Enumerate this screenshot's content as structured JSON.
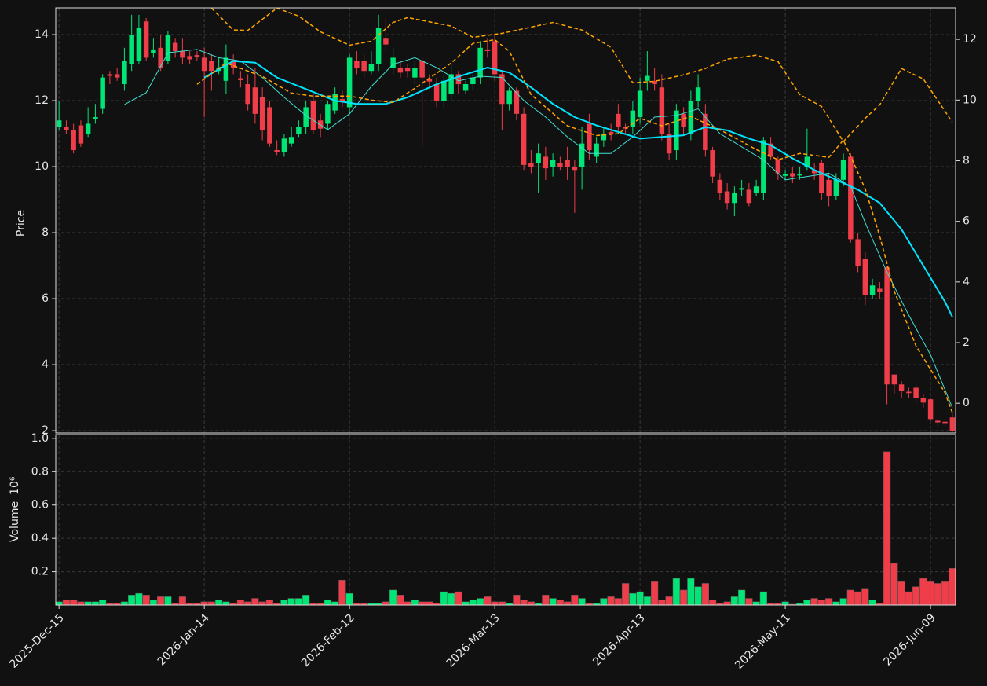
{
  "chart_data": [
    {
      "type": "candlestick",
      "ylabel": "Price",
      "up_color": "#00e676",
      "down_color": "#ef3d4a",
      "xlim": [
        -0.45,
        123.45
      ],
      "ylim": [
        1.93,
        14.81
      ],
      "yticks": [
        2,
        4,
        6,
        8,
        10,
        12,
        14
      ],
      "y2lim": [
        -0.98,
        13.04
      ],
      "y2ticks": [
        0,
        2,
        4,
        6,
        8,
        10,
        12
      ],
      "grid": true,
      "open": [
        11.2,
        11.2,
        11.1,
        11.25,
        11.0,
        11.45,
        11.75,
        12.8,
        12.8,
        12.5,
        13.1,
        13.2,
        14.4,
        13.45,
        13.6,
        13.2,
        13.75,
        13.5,
        13.35,
        13.38,
        13.3,
        13.2,
        12.9,
        12.6,
        13.2,
        12.68,
        12.5,
        12.4,
        12.1,
        11.8,
        10.5,
        10.45,
        10.7,
        11.0,
        11.2,
        12.0,
        11.4,
        11.3,
        11.7,
        12.05,
        11.8,
        13.2,
        13.2,
        12.9,
        13.1,
        13.9,
        13.0,
        13.0,
        13.0,
        12.7,
        13.2,
        12.65,
        12.5,
        12.0,
        12.2,
        12.8,
        12.3,
        12.5,
        12.7,
        13.55,
        13.8,
        12.8,
        11.9,
        12.3,
        11.6,
        10.1,
        10.1,
        10.3,
        10.0,
        10.1,
        10.2,
        10.0,
        10.0,
        11.3,
        10.3,
        10.8,
        11.05,
        11.6,
        11.2,
        11.2,
        11.5,
        12.6,
        12.6,
        12.4,
        11.0,
        10.5,
        11.6,
        11.0,
        12.0,
        11.6,
        10.5,
        9.6,
        9.25,
        8.9,
        9.3,
        9.3,
        9.2,
        9.2,
        10.7,
        10.2,
        9.72,
        9.8,
        9.73,
        10.0,
        9.9,
        10.1,
        9.6,
        9.1,
        9.6,
        10.3,
        7.8,
        7.2,
        6.1,
        6.3,
        6.95,
        3.7,
        3.4,
        3.18,
        3.3,
        3.0,
        2.95,
        2.3,
        2.27,
        2.4
      ],
      "high": [
        12.0,
        11.4,
        11.3,
        11.4,
        11.8,
        11.9,
        12.8,
        12.9,
        13.0,
        13.6,
        14.6,
        14.6,
        14.5,
        13.9,
        14.0,
        14.1,
        13.9,
        13.9,
        13.5,
        13.5,
        13.6,
        13.4,
        13.3,
        13.7,
        13.4,
        12.9,
        12.8,
        13.0,
        12.4,
        12.0,
        10.8,
        11.0,
        11.2,
        11.4,
        12.0,
        12.2,
        11.6,
        12.0,
        12.4,
        12.3,
        13.4,
        13.5,
        13.4,
        13.5,
        14.6,
        14.5,
        13.6,
        13.2,
        13.1,
        13.2,
        13.3,
        12.8,
        12.7,
        12.8,
        13.1,
        12.9,
        12.6,
        12.9,
        13.8,
        13.9,
        14.0,
        12.9,
        12.4,
        12.4,
        11.8,
        10.5,
        10.7,
        10.6,
        10.4,
        10.3,
        10.6,
        10.2,
        11.2,
        11.6,
        10.9,
        11.2,
        11.3,
        11.9,
        11.3,
        12.0,
        12.7,
        13.5,
        13.0,
        12.8,
        11.3,
        11.9,
        11.8,
        12.3,
        12.8,
        11.9,
        10.6,
        9.8,
        9.5,
        9.4,
        9.6,
        9.5,
        9.6,
        10.9,
        10.9,
        10.3,
        9.9,
        10.0,
        10.0,
        11.15,
        10.1,
        10.2,
        9.8,
        9.8,
        10.4,
        10.4,
        8.0,
        7.4,
        6.6,
        6.5,
        7.0,
        3.7,
        3.5,
        3.3,
        3.4,
        3.1,
        3.0,
        2.35,
        2.35,
        2.5
      ],
      "low": [
        11.1,
        11.0,
        10.4,
        10.6,
        10.9,
        11.3,
        11.6,
        12.5,
        12.6,
        12.3,
        12.9,
        13.1,
        13.2,
        13.3,
        12.9,
        13.1,
        13.3,
        13.1,
        13.1,
        13.2,
        11.5,
        12.3,
        12.8,
        12.2,
        12.8,
        12.4,
        11.7,
        11.3,
        10.8,
        10.6,
        10.35,
        10.3,
        10.6,
        10.9,
        11.0,
        11.0,
        10.9,
        11.1,
        11.6,
        11.8,
        11.6,
        12.8,
        12.7,
        12.8,
        12.9,
        13.5,
        12.8,
        12.7,
        12.7,
        12.5,
        10.6,
        12.4,
        11.8,
        11.8,
        12.0,
        12.2,
        12.2,
        12.3,
        12.5,
        13.3,
        12.6,
        11.1,
        11.7,
        11.4,
        9.9,
        9.8,
        9.2,
        9.6,
        9.7,
        9.9,
        9.6,
        8.6,
        9.3,
        10.2,
        10.1,
        10.6,
        10.8,
        11.0,
        11.0,
        11.0,
        11.3,
        12.3,
        12.3,
        10.8,
        10.2,
        10.2,
        11.0,
        10.8,
        11.8,
        10.3,
        9.5,
        9.0,
        8.7,
        8.5,
        9.1,
        8.8,
        9.1,
        9.0,
        10.2,
        9.6,
        9.6,
        9.5,
        9.6,
        9.9,
        9.6,
        9.0,
        8.8,
        9.0,
        9.4,
        7.7,
        6.8,
        5.8,
        6.0,
        6.0,
        2.8,
        3.1,
        3.0,
        3.0,
        2.8,
        2.7,
        2.3,
        2.15,
        2.1,
        1.95
      ],
      "close": [
        11.4,
        11.1,
        10.5,
        10.7,
        11.3,
        11.5,
        12.7,
        12.75,
        12.7,
        13.2,
        14.0,
        14.2,
        13.3,
        13.55,
        13.0,
        14.0,
        13.5,
        13.3,
        13.25,
        13.32,
        12.9,
        12.9,
        13.0,
        13.3,
        13.0,
        12.62,
        11.9,
        11.6,
        11.1,
        10.7,
        10.45,
        10.85,
        10.9,
        11.2,
        11.8,
        11.1,
        11.15,
        11.9,
        12.2,
        11.95,
        13.3,
        13.0,
        12.9,
        13.1,
        14.2,
        13.7,
        13.3,
        12.85,
        12.9,
        13.0,
        12.7,
        12.58,
        12.0,
        12.6,
        12.8,
        12.5,
        12.5,
        12.7,
        13.6,
        13.5,
        12.8,
        11.9,
        12.3,
        11.6,
        10.05,
        10.0,
        10.4,
        9.95,
        10.2,
        10.0,
        10.0,
        9.9,
        10.7,
        10.5,
        10.7,
        11.0,
        11.0,
        11.2,
        11.15,
        11.7,
        12.3,
        12.75,
        12.5,
        11.0,
        10.4,
        11.7,
        11.2,
        12.0,
        12.4,
        10.5,
        9.7,
        9.2,
        8.9,
        9.2,
        9.35,
        8.9,
        9.4,
        10.8,
        10.3,
        9.8,
        9.78,
        9.7,
        9.78,
        10.3,
        9.8,
        9.2,
        9.1,
        9.6,
        10.2,
        7.8,
        7.0,
        6.1,
        6.4,
        6.2,
        3.4,
        3.4,
        3.2,
        3.14,
        3.0,
        2.85,
        2.35,
        2.25,
        2.23,
        2.0
      ],
      "series": [
        {
          "color": "#40e0d0",
          "linewidth": 1,
          "dashed": false,
          "x": [
            9,
            12,
            15,
            19,
            22,
            25,
            28,
            31,
            34,
            37,
            40,
            43,
            46,
            49,
            52,
            55,
            58,
            61,
            64,
            67,
            70,
            73,
            76,
            79,
            82,
            85,
            88,
            91,
            94,
            97,
            100,
            103,
            106,
            109,
            111,
            114,
            117,
            120,
            123
          ],
          "values": [
            11.88,
            12.24,
            13.45,
            13.55,
            13.3,
            13.2,
            12.7,
            12.1,
            11.55,
            11.12,
            11.6,
            12.43,
            13.1,
            13.3,
            13.0,
            12.6,
            12.74,
            12.7,
            12.0,
            11.5,
            10.9,
            10.4,
            10.4,
            10.9,
            11.5,
            11.55,
            11.75,
            11.0,
            10.6,
            10.2,
            9.6,
            9.7,
            9.8,
            9.4,
            8.3,
            6.8,
            5.5,
            4.3,
            2.7
          ]
        },
        {
          "color": "#00e5ff",
          "linewidth": 2,
          "dashed": false,
          "x": [
            20,
            24,
            27,
            30,
            34,
            38,
            41,
            45,
            48,
            52,
            56,
            59,
            62,
            65,
            68,
            71,
            74,
            77,
            80,
            83,
            86,
            89,
            92,
            95,
            98,
            101,
            104,
            107,
            110,
            113,
            116,
            119,
            122,
            123
          ],
          "values": [
            12.7,
            13.2,
            13.15,
            12.7,
            12.35,
            12.0,
            11.9,
            11.9,
            12.1,
            12.5,
            12.8,
            13.0,
            12.85,
            12.4,
            11.9,
            11.5,
            11.25,
            11.05,
            10.85,
            10.9,
            10.95,
            11.2,
            11.1,
            10.85,
            10.65,
            10.25,
            9.9,
            9.6,
            9.3,
            8.9,
            8.1,
            7.0,
            5.9,
            5.45
          ]
        },
        {
          "color": "#ffa500",
          "linewidth": 1.5,
          "dashed": true,
          "axis": "y2",
          "x": [
            21,
            24,
            26,
            30,
            33,
            36,
            40,
            43,
            46,
            48,
            54,
            57,
            61,
            68,
            72,
            76,
            79,
            82,
            86,
            89,
            92,
            96,
            99,
            102,
            105,
            108,
            111,
            113,
            116,
            119,
            123
          ],
          "values": [
            13.03,
            12.31,
            12.3,
            13.03,
            12.77,
            12.25,
            11.81,
            11.94,
            12.56,
            12.72,
            12.44,
            12.07,
            12.2,
            12.56,
            12.31,
            11.74,
            10.57,
            10.62,
            10.83,
            11.04,
            11.35,
            11.48,
            11.27,
            10.18,
            9.79,
            8.63,
            9.4,
            9.84,
            11.04,
            10.7,
            9.27
          ]
        },
        {
          "color": "#ffa500",
          "linewidth": 1.5,
          "dashed": true,
          "axis": "y2",
          "x": [
            19,
            23,
            28,
            32,
            35,
            40,
            43,
            46,
            49,
            54,
            57,
            60,
            62,
            65,
            70,
            74,
            77,
            80,
            83,
            87,
            91,
            96,
            99,
            102,
            106,
            108,
            111,
            113,
            115,
            118,
            122,
            123
          ],
          "values": [
            10.52,
            11.22,
            10.78,
            10.23,
            10.13,
            10.13,
            10.0,
            9.92,
            10.39,
            11.22,
            11.87,
            11.99,
            11.61,
            10.18,
            9.15,
            8.83,
            8.89,
            9.4,
            9.15,
            9.46,
            9.02,
            8.37,
            8.03,
            8.24,
            8.11,
            8.68,
            7.07,
            5.52,
            3.7,
            1.89,
            0.34,
            -0.31
          ]
        }
      ]
    },
    {
      "type": "volume",
      "ylabel": "Volume",
      "offset_label": "10⁶",
      "grid": true,
      "xlim": [
        -0.45,
        123.45
      ],
      "ylim": [
        0,
        1.023
      ],
      "yticks": [
        0.2,
        0.4,
        0.6,
        0.8,
        {
          "value": 1,
          "label": "1.0"
        }
      ],
      "xticks": [
        {
          "value": 0,
          "label": "2025-Dec-15"
        },
        {
          "value": 20,
          "label": "2026-Jan-14"
        },
        {
          "value": 40,
          "label": "2026-Feb-12"
        },
        {
          "value": 60,
          "label": "2026-Mar-13"
        },
        {
          "value": 80,
          "label": "2026-Apr-13"
        },
        {
          "value": 100,
          "label": "2026-May-11"
        },
        {
          "value": 120,
          "label": "2026-Jun-09"
        }
      ],
      "values": [
        0.02,
        0.03,
        0.03,
        0.02,
        0.02,
        0.02,
        0.03,
        0.01,
        0.01,
        0.02,
        0.06,
        0.07,
        0.06,
        0.03,
        0.05,
        0.05,
        0.01,
        0.05,
        0.01,
        0.01,
        0.02,
        0.02,
        0.03,
        0.02,
        0.01,
        0.03,
        0.02,
        0.04,
        0.02,
        0.03,
        0.01,
        0.03,
        0.04,
        0.04,
        0.06,
        0.01,
        0.01,
        0.03,
        0.02,
        0.15,
        0.07,
        0.01,
        0.01,
        0.01,
        0.01,
        0.02,
        0.09,
        0.06,
        0.02,
        0.03,
        0.02,
        0.02,
        0.01,
        0.08,
        0.07,
        0.08,
        0.02,
        0.03,
        0.04,
        0.05,
        0.02,
        0.02,
        0.01,
        0.06,
        0.03,
        0.02,
        0.01,
        0.06,
        0.04,
        0.03,
        0.02,
        0.06,
        0.04,
        0.01,
        0.01,
        0.04,
        0.05,
        0.04,
        0.13,
        0.07,
        0.08,
        0.05,
        0.14,
        0.03,
        0.05,
        0.16,
        0.09,
        0.16,
        0.11,
        0.13,
        0.03,
        0.01,
        0.02,
        0.05,
        0.09,
        0.04,
        0.02,
        0.08,
        0.01,
        0.01,
        0.02,
        0.005,
        0.01,
        0.03,
        0.04,
        0.03,
        0.04,
        0.02,
        0.04,
        0.09,
        0.08,
        0.1,
        0.03,
        0.01,
        0.92,
        0.25,
        0.14,
        0.08,
        0.11,
        0.16,
        0.14,
        0.13,
        0.14,
        0.22
      ]
    }
  ]
}
